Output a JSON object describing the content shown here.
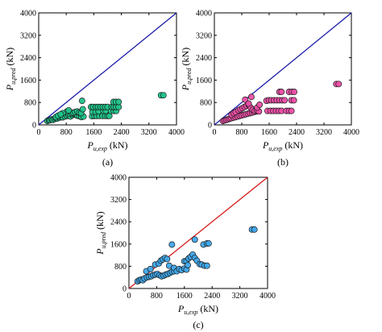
{
  "chart_data": [
    {
      "id": "a",
      "type": "scatter",
      "caption": "(a)",
      "xlabel": {
        "main": "P",
        "sub": "u,exp",
        "unit": " (kN)"
      },
      "ylabel": {
        "main": "P",
        "sub": "u,pred",
        "unit": " (kN)"
      },
      "xlim": [
        0,
        4000
      ],
      "ylim": [
        0,
        4000
      ],
      "xticks": [
        "0",
        "800",
        "1600",
        "2400",
        "3200",
        "4000"
      ],
      "yticks": [
        "0",
        "800",
        "1600",
        "2400",
        "3200",
        "4000"
      ],
      "reference_line": {
        "from": [
          0,
          0
        ],
        "to": [
          4000,
          4000
        ],
        "color": "#1a1aa8"
      },
      "marker_color": "#1fc48a",
      "grid": false,
      "legend": "none",
      "points": [
        [
          250,
          140
        ],
        [
          300,
          160
        ],
        [
          330,
          170
        ],
        [
          380,
          200
        ],
        [
          410,
          180
        ],
        [
          460,
          210
        ],
        [
          500,
          240
        ],
        [
          540,
          230
        ],
        [
          600,
          260
        ],
        [
          650,
          280
        ],
        [
          700,
          270
        ],
        [
          760,
          300
        ],
        [
          820,
          320
        ],
        [
          870,
          340
        ],
        [
          920,
          300
        ],
        [
          980,
          350
        ],
        [
          1030,
          380
        ],
        [
          1080,
          360
        ],
        [
          1120,
          330
        ],
        [
          1180,
          310
        ],
        [
          1240,
          280
        ],
        [
          1300,
          300
        ],
        [
          500,
          280
        ],
        [
          560,
          330
        ],
        [
          900,
          400
        ],
        [
          960,
          420
        ],
        [
          1000,
          440
        ],
        [
          1060,
          460
        ],
        [
          1120,
          480
        ],
        [
          1180,
          440
        ],
        [
          1230,
          420
        ],
        [
          1280,
          560
        ],
        [
          820,
          480
        ],
        [
          870,
          520
        ],
        [
          700,
          420
        ],
        [
          640,
          380
        ],
        [
          1550,
          310
        ],
        [
          1620,
          320
        ],
        [
          1680,
          320
        ],
        [
          1760,
          320
        ],
        [
          1850,
          320
        ],
        [
          1930,
          320
        ],
        [
          2000,
          320
        ],
        [
          2050,
          320
        ],
        [
          1560,
          470
        ],
        [
          1650,
          470
        ],
        [
          1740,
          480
        ],
        [
          1880,
          500
        ],
        [
          1950,
          500
        ],
        [
          2100,
          500
        ],
        [
          2180,
          500
        ],
        [
          2250,
          500
        ],
        [
          1520,
          640
        ],
        [
          1580,
          640
        ],
        [
          1660,
          640
        ],
        [
          1720,
          640
        ],
        [
          1790,
          640
        ],
        [
          1860,
          640
        ],
        [
          1930,
          640
        ],
        [
          2000,
          640
        ],
        [
          2120,
          640
        ],
        [
          2180,
          640
        ],
        [
          2250,
          640
        ],
        [
          2320,
          640
        ],
        [
          2170,
          820
        ],
        [
          2240,
          820
        ],
        [
          2320,
          820
        ],
        [
          1260,
          860
        ],
        [
          3550,
          1060
        ],
        [
          3620,
          1060
        ]
      ]
    },
    {
      "id": "b",
      "type": "scatter",
      "caption": "(b)",
      "xlabel": {
        "main": "P",
        "sub": "u,exp",
        "unit": " (kN)"
      },
      "ylabel": {
        "main": "P",
        "sub": "u,pred",
        "unit": " (kN)"
      },
      "xlim": [
        0,
        4000
      ],
      "ylim": [
        0,
        4000
      ],
      "xticks": [
        "0",
        "800",
        "1600",
        "2400",
        "3200",
        "4000"
      ],
      "yticks": [
        "0",
        "800",
        "1600",
        "2400",
        "3200",
        "4000"
      ],
      "reference_line": {
        "from": [
          0,
          0
        ],
        "to": [
          4000,
          4000
        ],
        "color": "#1a1aa8"
      },
      "marker_color": "#ee4fa8",
      "grid": false,
      "legend": "none",
      "points": [
        [
          250,
          140
        ],
        [
          300,
          160
        ],
        [
          350,
          180
        ],
        [
          400,
          200
        ],
        [
          450,
          220
        ],
        [
          500,
          240
        ],
        [
          560,
          260
        ],
        [
          620,
          280
        ],
        [
          680,
          300
        ],
        [
          740,
          320
        ],
        [
          800,
          340
        ],
        [
          860,
          360
        ],
        [
          920,
          380
        ],
        [
          980,
          400
        ],
        [
          1040,
          420
        ],
        [
          1100,
          440
        ],
        [
          1160,
          460
        ],
        [
          1220,
          480
        ],
        [
          500,
          360
        ],
        [
          560,
          420
        ],
        [
          620,
          460
        ],
        [
          700,
          520
        ],
        [
          760,
          560
        ],
        [
          820,
          600
        ],
        [
          880,
          640
        ],
        [
          940,
          680
        ],
        [
          1000,
          720
        ],
        [
          1060,
          620
        ],
        [
          1120,
          540
        ],
        [
          1180,
          500
        ],
        [
          1240,
          520
        ],
        [
          1300,
          480
        ],
        [
          900,
          900
        ],
        [
          1000,
          760
        ],
        [
          1080,
          1000
        ],
        [
          1550,
          500
        ],
        [
          1640,
          500
        ],
        [
          1720,
          500
        ],
        [
          1800,
          500
        ],
        [
          1880,
          500
        ],
        [
          1960,
          500
        ],
        [
          2100,
          500
        ],
        [
          2180,
          500
        ],
        [
          2250,
          500
        ],
        [
          1520,
          860
        ],
        [
          1590,
          880
        ],
        [
          1660,
          880
        ],
        [
          1740,
          880
        ],
        [
          1820,
          880
        ],
        [
          1900,
          880
        ],
        [
          1980,
          880
        ],
        [
          2050,
          880
        ],
        [
          2250,
          880
        ],
        [
          2320,
          880
        ],
        [
          2180,
          1180
        ],
        [
          2260,
          1180
        ],
        [
          2330,
          1180
        ],
        [
          1900,
          1180
        ],
        [
          1960,
          1180
        ],
        [
          1250,
          620
        ],
        [
          1320,
          720
        ],
        [
          3560,
          1460
        ],
        [
          3630,
          1460
        ]
      ]
    },
    {
      "id": "c",
      "type": "scatter",
      "caption": "(c)",
      "xlabel": {
        "main": "P",
        "sub": "u,exp",
        "unit": " (kN)"
      },
      "ylabel": {
        "main": "P",
        "sub": "u,pred",
        "unit": " (kN)"
      },
      "xlim": [
        0,
        4000
      ],
      "ylim": [
        0,
        4000
      ],
      "xticks": [
        "0",
        "800",
        "1600",
        "2400",
        "3200",
        "4000"
      ],
      "yticks": [
        "0",
        "800",
        "1600",
        "2400",
        "3200",
        "4000"
      ],
      "reference_line": {
        "from": [
          0,
          0
        ],
        "to": [
          4000,
          4000
        ],
        "color": "#d41a1a"
      },
      "marker_color": "#3fa7ea",
      "grid": false,
      "legend": "none",
      "points": [
        [
          250,
          260
        ],
        [
          300,
          300
        ],
        [
          350,
          320
        ],
        [
          400,
          300
        ],
        [
          450,
          360
        ],
        [
          520,
          400
        ],
        [
          580,
          420
        ],
        [
          640,
          440
        ],
        [
          700,
          480
        ],
        [
          760,
          500
        ],
        [
          820,
          520
        ],
        [
          880,
          480
        ],
        [
          940,
          440
        ],
        [
          1000,
          460
        ],
        [
          1060,
          500
        ],
        [
          1120,
          520
        ],
        [
          1180,
          560
        ],
        [
          1240,
          600
        ],
        [
          1300,
          620
        ],
        [
          500,
          620
        ],
        [
          620,
          700
        ],
        [
          760,
          860
        ],
        [
          860,
          900
        ],
        [
          920,
          1000
        ],
        [
          980,
          1050
        ],
        [
          1040,
          1100
        ],
        [
          1100,
          1060
        ],
        [
          1160,
          820
        ],
        [
          1240,
          1580
        ],
        [
          1300,
          740
        ],
        [
          1380,
          620
        ],
        [
          1450,
          700
        ],
        [
          1520,
          660
        ],
        [
          1600,
          980
        ],
        [
          1660,
          980
        ],
        [
          1720,
          1080
        ],
        [
          1780,
          1140
        ],
        [
          1840,
          1220
        ],
        [
          1900,
          1100
        ],
        [
          1960,
          1000
        ],
        [
          2040,
          880
        ],
        [
          2100,
          860
        ],
        [
          2180,
          820
        ],
        [
          2250,
          820
        ],
        [
          1600,
          720
        ],
        [
          1660,
          680
        ],
        [
          1900,
          1760
        ],
        [
          2150,
          1580
        ],
        [
          2250,
          1620
        ],
        [
          2300,
          1620
        ],
        [
          1700,
          840
        ],
        [
          3550,
          2120
        ],
        [
          3620,
          2120
        ]
      ]
    }
  ]
}
